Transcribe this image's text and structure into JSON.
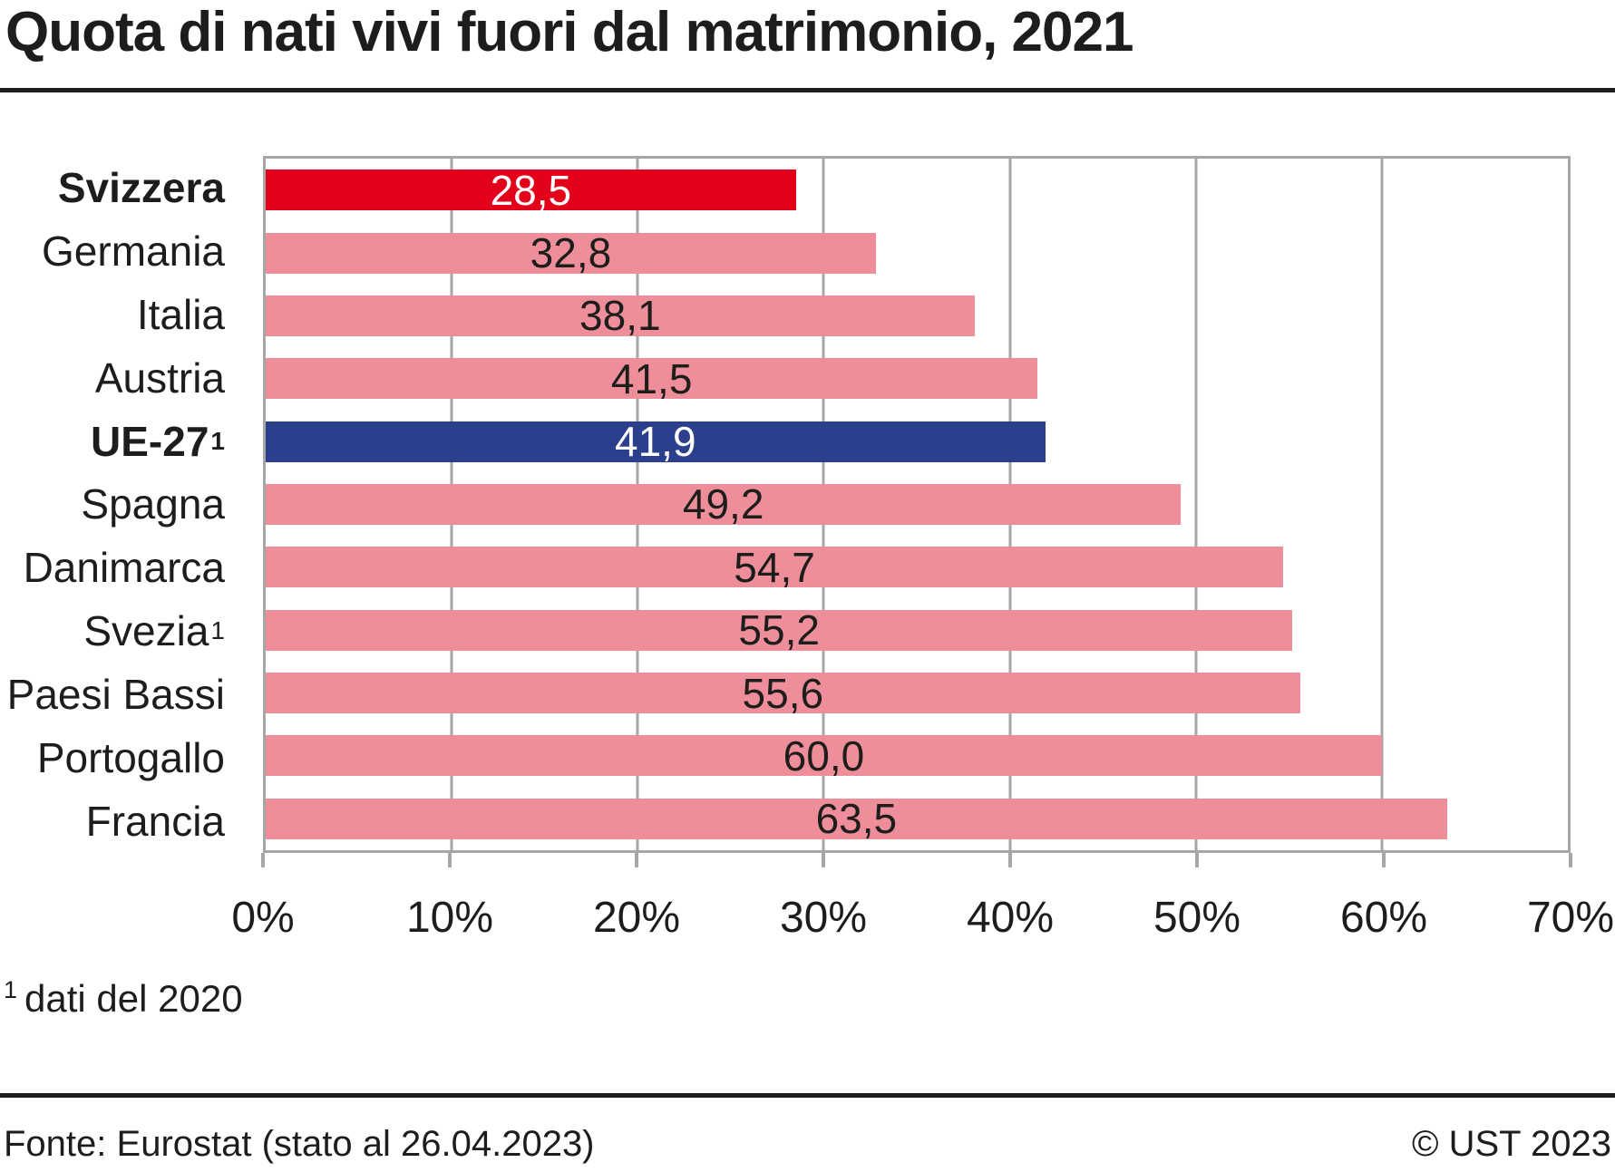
{
  "title": "Quota di nati vivi fuori dal matrimonio, 2021",
  "footnote": {
    "marker": "1",
    "text": "dati del 2020"
  },
  "footer": {
    "source": "Fonte: Eurostat (stato al 26.04.2023)",
    "copyright": "© UST 2023"
  },
  "colors": {
    "switzerland_bar": "#e2001a",
    "eu_bar": "#2b3f8c",
    "other_bar": "#ef8e9b",
    "grid": "#a6a6a6",
    "text": "#1d1d1b",
    "value_on_dark": "#ffffff"
  },
  "chart_data": {
    "type": "bar",
    "orientation": "horizontal",
    "title": "Quota di nati vivi fuori dal matrimonio, 2021",
    "xlabel": "",
    "ylabel": "",
    "unit": "%",
    "xlim": [
      0,
      70
    ],
    "x_ticks": [
      "0%",
      "10%",
      "20%",
      "30%",
      "40%",
      "50%",
      "60%",
      "70%"
    ],
    "grid": true,
    "legend": false,
    "categories": [
      "Svizzera",
      "Germania",
      "Italia",
      "Austria",
      "UE-27",
      "Spagna",
      "Danimarca",
      "Svezia",
      "Paesi Bassi",
      "Portogallo",
      "Francia"
    ],
    "values": [
      28.5,
      32.8,
      38.1,
      41.5,
      41.9,
      49.2,
      54.7,
      55.2,
      55.6,
      60.0,
      63.5
    ],
    "rows": [
      {
        "label": "Svizzera",
        "sup": "",
        "bold": true,
        "value": 28.5,
        "value_label": "28,5",
        "bar_color": "#e2001a",
        "value_color": "#ffffff"
      },
      {
        "label": "Germania",
        "sup": "",
        "bold": false,
        "value": 32.8,
        "value_label": "32,8",
        "bar_color": "#ef8e9b",
        "value_color": "#1d1d1b"
      },
      {
        "label": "Italia",
        "sup": "",
        "bold": false,
        "value": 38.1,
        "value_label": "38,1",
        "bar_color": "#ef8e9b",
        "value_color": "#1d1d1b"
      },
      {
        "label": "Austria",
        "sup": "",
        "bold": false,
        "value": 41.5,
        "value_label": "41,5",
        "bar_color": "#ef8e9b",
        "value_color": "#1d1d1b"
      },
      {
        "label": "UE-27",
        "sup": "1",
        "bold": true,
        "value": 41.9,
        "value_label": "41,9",
        "bar_color": "#2b3f8c",
        "value_color": "#ffffff"
      },
      {
        "label": "Spagna",
        "sup": "",
        "bold": false,
        "value": 49.2,
        "value_label": "49,2",
        "bar_color": "#ef8e9b",
        "value_color": "#1d1d1b"
      },
      {
        "label": "Danimarca",
        "sup": "",
        "bold": false,
        "value": 54.7,
        "value_label": "54,7",
        "bar_color": "#ef8e9b",
        "value_color": "#1d1d1b"
      },
      {
        "label": "Svezia",
        "sup": "1",
        "bold": false,
        "value": 55.2,
        "value_label": "55,2",
        "bar_color": "#ef8e9b",
        "value_color": "#1d1d1b"
      },
      {
        "label": "Paesi Bassi",
        "sup": "",
        "bold": false,
        "value": 55.6,
        "value_label": "55,6",
        "bar_color": "#ef8e9b",
        "value_color": "#1d1d1b"
      },
      {
        "label": "Portogallo",
        "sup": "",
        "bold": false,
        "value": 60.0,
        "value_label": "60,0",
        "bar_color": "#ef8e9b",
        "value_color": "#1d1d1b"
      },
      {
        "label": "Francia",
        "sup": "",
        "bold": false,
        "value": 63.5,
        "value_label": "63,5",
        "bar_color": "#ef8e9b",
        "value_color": "#1d1d1b"
      }
    ]
  }
}
